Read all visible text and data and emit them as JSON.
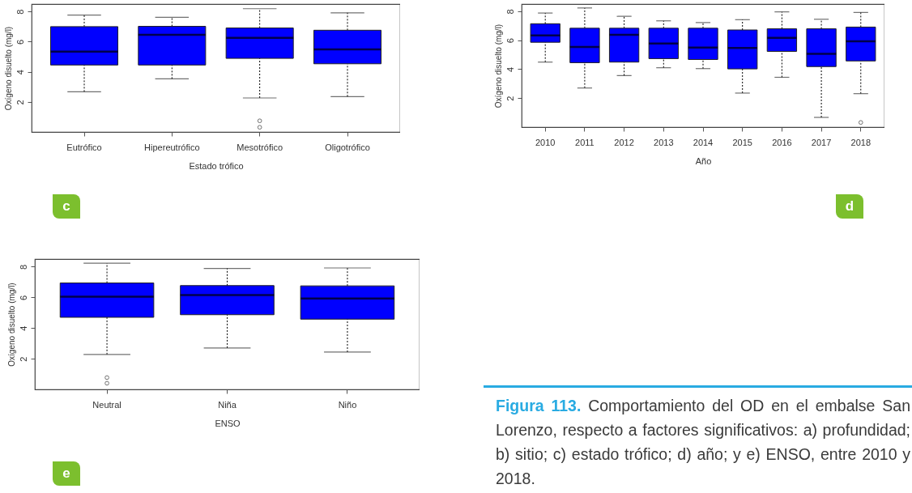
{
  "chart_data": [
    {
      "type": "box",
      "xlabel": "Estado trófico",
      "ylabel": "Oxígeno disuelto (mg/l)",
      "color": "#0000ff",
      "ylim": [
        0,
        8.5
      ],
      "yticks": [
        2,
        4,
        6,
        8
      ],
      "annotations": [
        "c"
      ],
      "categories": [
        "Eutrófico",
        "Hipereutrófico",
        "Mesotrófico",
        "Oligotrófico"
      ],
      "boxes": [
        {
          "low": 2.67,
          "q1": 4.45,
          "median": 5.34,
          "q3": 7.0,
          "high": 7.77
        },
        {
          "low": 3.53,
          "q1": 4.45,
          "median": 6.46,
          "q3": 7.02,
          "high": 7.62
        },
        {
          "low": 2.26,
          "q1": 4.89,
          "median": 6.26,
          "q3": 6.91,
          "high": 8.19,
          "outliers": [
            0.74,
            0.31
          ]
        },
        {
          "low": 2.35,
          "q1": 4.53,
          "median": 5.49,
          "q3": 6.76,
          "high": 7.92
        }
      ]
    },
    {
      "type": "box",
      "xlabel": "Año",
      "ylabel": "Oxígeno disuelto (mg/l)",
      "color": "#0000ff",
      "ylim": [
        0,
        8.5
      ],
      "yticks": [
        2,
        4,
        6,
        8
      ],
      "annotations": [
        "d"
      ],
      "categories": [
        "2010",
        "2011",
        "2012",
        "2013",
        "2014",
        "2015",
        "2016",
        "2017",
        "2018"
      ],
      "boxes": [
        {
          "low": 4.49,
          "q1": 5.86,
          "median": 6.34,
          "q3": 7.14,
          "high": 7.88
        },
        {
          "low": 2.7,
          "q1": 4.45,
          "median": 5.54,
          "q3": 6.83,
          "high": 8.23
        },
        {
          "low": 3.56,
          "q1": 4.49,
          "median": 6.38,
          "q3": 6.83,
          "high": 7.65
        },
        {
          "low": 4.1,
          "q1": 4.73,
          "median": 5.78,
          "q3": 6.83,
          "high": 7.34
        },
        {
          "low": 4.04,
          "q1": 4.67,
          "median": 5.49,
          "q3": 6.83,
          "high": 7.22
        },
        {
          "low": 2.35,
          "q1": 4.02,
          "median": 5.47,
          "q3": 6.71,
          "high": 7.42
        },
        {
          "low": 3.44,
          "q1": 5.23,
          "median": 6.17,
          "q3": 6.79,
          "high": 7.96
        },
        {
          "low": 0.67,
          "q1": 4.18,
          "median": 5.06,
          "q3": 6.79,
          "high": 7.45
        },
        {
          "low": 2.31,
          "q1": 4.57,
          "median": 5.93,
          "q3": 6.91,
          "high": 7.92,
          "outliers": [
            0.32
          ]
        }
      ]
    },
    {
      "type": "box",
      "xlabel": "ENSO",
      "ylabel": "Oxígeno disuelto (mg/l)",
      "color": "#0000ff",
      "ylim": [
        0,
        8.5
      ],
      "yticks": [
        2,
        4,
        6,
        8
      ],
      "annotations": [
        "e"
      ],
      "categories": [
        "Neutral",
        "Niña",
        "Niño"
      ],
      "boxes": [
        {
          "low": 2.28,
          "q1": 4.7,
          "median": 6.04,
          "q3": 6.94,
          "high": 8.23,
          "outliers": [
            0.77,
            0.4
          ]
        },
        {
          "low": 2.7,
          "q1": 4.87,
          "median": 6.15,
          "q3": 6.77,
          "high": 7.89
        },
        {
          "low": 2.43,
          "q1": 4.58,
          "median": 5.92,
          "q3": 6.75,
          "high": 7.92
        }
      ]
    },
    {
      "type": "other",
      "annotations": [
        "Figura 113.",
        "Comportamiento del OD en el embalse San Lorenzo, respecto a factores significativos: a) profundidad; b) sitio; c) estado trófico; d) año; y e) ENSO, entre 2010 y 2018."
      ]
    }
  ]
}
